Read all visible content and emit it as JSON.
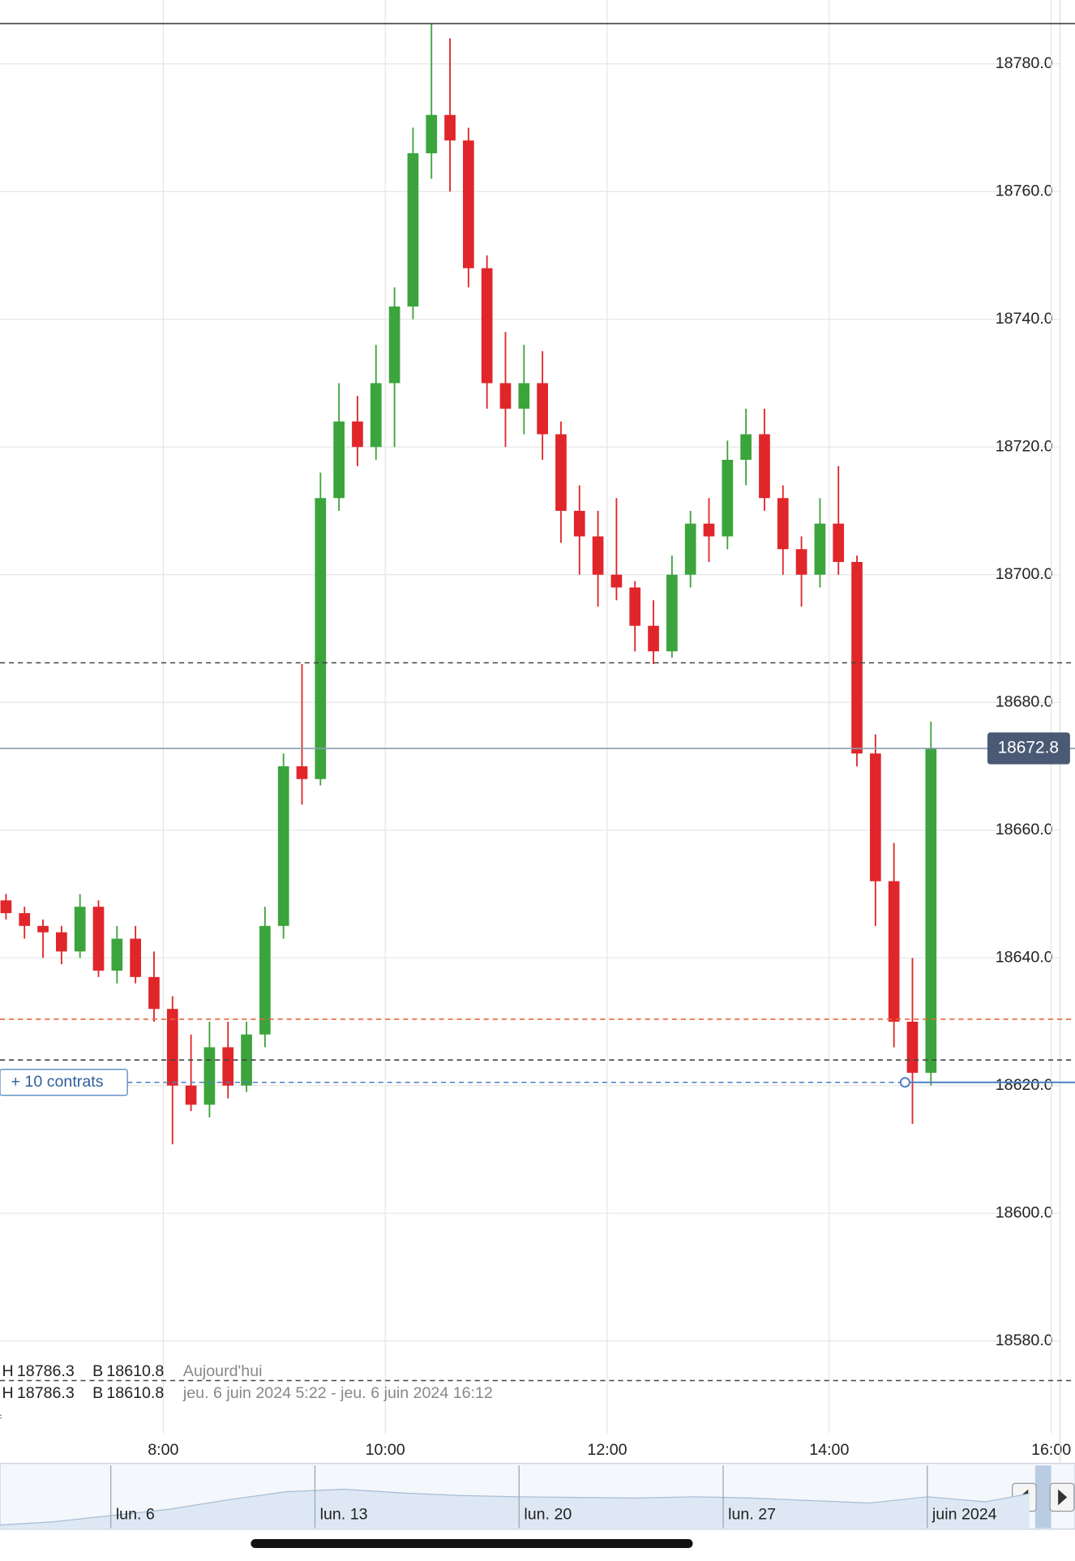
{
  "chart_data": [
    {
      "type": "candlestick",
      "x": [
        390,
        400,
        410,
        420,
        430,
        440,
        450,
        460,
        470,
        480,
        490,
        500,
        510,
        520,
        530,
        540,
        550,
        560,
        570,
        580,
        590,
        600,
        610,
        620,
        630,
        640,
        650,
        660,
        670,
        680,
        690,
        700,
        710,
        720,
        730,
        740,
        750,
        760,
        770,
        780,
        790,
        800,
        810,
        820,
        830,
        840,
        850,
        860,
        870,
        880,
        890
      ],
      "open": [
        18649,
        18647,
        18645,
        18644,
        18641,
        18648,
        18638,
        18643,
        18637,
        18632,
        18620,
        18617,
        18626,
        18620,
        18628,
        18645,
        18670,
        18668,
        18712,
        18724,
        18720,
        18730,
        18742,
        18766,
        18772,
        18768,
        18748,
        18730,
        18726,
        18730,
        18722,
        18710,
        18706,
        18700,
        18698,
        18692,
        18688,
        18700,
        18708,
        18706,
        18718,
        18722,
        18712,
        18704,
        18700,
        18708,
        18702,
        18672,
        18652,
        18630,
        18622
      ],
      "high": [
        18650,
        18648,
        18646,
        18645,
        18650,
        18649,
        18645,
        18645,
        18641,
        18634,
        18628,
        18630,
        18630,
        18630,
        18648,
        18672,
        18686,
        18716,
        18730,
        18728,
        18736,
        18745,
        18770,
        18786.3,
        18784,
        18770,
        18750,
        18738,
        18736,
        18735,
        18724,
        18714,
        18710,
        18712,
        18699,
        18696,
        18703,
        18710,
        18712,
        18721,
        18726,
        18726,
        18714,
        18706,
        18712,
        18717,
        18703,
        18675,
        18658,
        18640,
        18677
      ],
      "low": [
        18646,
        18643,
        18640,
        18639,
        18640,
        18637,
        18636,
        18636,
        18630,
        18610.8,
        18616,
        18615,
        18618,
        18619,
        18626,
        18643,
        18664,
        18667,
        18710,
        18717,
        18718,
        18720,
        18740,
        18762,
        18760,
        18745,
        18726,
        18720,
        18722,
        18718,
        18705,
        18700,
        18695,
        18696,
        18688,
        18686,
        18687,
        18698,
        18702,
        18704,
        18714,
        18710,
        18700,
        18695,
        18698,
        18700,
        18670,
        18645,
        18626,
        18614,
        18620
      ],
      "close": [
        18647,
        18645,
        18644,
        18641,
        18648,
        18638,
        18643,
        18637,
        18632,
        18620,
        18617,
        18626,
        18620,
        18628,
        18645,
        18670,
        18668,
        18712,
        18724,
        18720,
        18730,
        18742,
        18766,
        18772,
        18768,
        18748,
        18730,
        18726,
        18730,
        18722,
        18710,
        18706,
        18700,
        18698,
        18692,
        18688,
        18700,
        18708,
        18706,
        18718,
        18722,
        18712,
        18704,
        18700,
        18708,
        18702,
        18672,
        18652,
        18630,
        18622,
        18672.8
      ],
      "up_color": "#3ca43c",
      "down_color": "#e0262a",
      "xlim": [
        391.75,
        964.8
      ],
      "xticks": [
        {
          "value": 480,
          "label": "8:00"
        },
        {
          "value": 600,
          "label": "10:00"
        },
        {
          "value": 720,
          "label": "12:00"
        },
        {
          "value": 840,
          "label": "14:00"
        },
        {
          "value": 960,
          "label": "16:00"
        }
      ],
      "ylim": [
        18565.5,
        18790
      ],
      "yticks": [
        {
          "value": 18580,
          "label": "18580.0"
        },
        {
          "value": 18600,
          "label": "18600.0"
        },
        {
          "value": 18620,
          "label": "18620.0"
        },
        {
          "value": 18640,
          "label": "18640.0"
        },
        {
          "value": 18660,
          "label": "18660.0"
        },
        {
          "value": 18680,
          "label": "18680.0"
        },
        {
          "value": 18700,
          "label": "18700.0"
        },
        {
          "value": 18720,
          "label": "18720.0"
        },
        {
          "value": 18740,
          "label": "18740.0"
        },
        {
          "value": 18760,
          "label": "18760.0"
        },
        {
          "value": 18780,
          "label": "18780.0"
        }
      ],
      "grid": true,
      "lines": [
        {
          "value": 18786.3,
          "color": "#333333",
          "style": "solid"
        },
        {
          "value": 18686.2,
          "color": "#444444",
          "style": "dashed"
        },
        {
          "value": 18672.8,
          "color": "#8a9bb0",
          "style": "solid",
          "tag_color": "#4a5a75"
        },
        {
          "value": 18630.4,
          "color": "#e8643c",
          "style": "dashed"
        },
        {
          "value": 18624,
          "color": "#444444",
          "style": "dashed"
        },
        {
          "value": 18620.5,
          "color": "#4a7fc1",
          "style": "dashed",
          "label": "+ 10 contrats",
          "anchor_x": 881
        },
        {
          "value": 18573.8,
          "color": "#444444",
          "style": "dashed"
        }
      ],
      "stats": [
        {
          "high_label": "H",
          "high": 18786.3,
          "low_label": "B",
          "low": 18610.8,
          "period": "Aujourd'hui"
        },
        {
          "high_label": "H",
          "high": 18786.3,
          "low_label": "B",
          "low": 18610.8,
          "period": "jeu. 6 juin 2024 5:22 - jeu. 6 juin 2024 16:12"
        }
      ],
      "edge_text": "f"
    },
    {
      "type": "area",
      "x": [
        2.2,
        4,
        6,
        8,
        10,
        12,
        14,
        16,
        18,
        20,
        22,
        24,
        26,
        28,
        30,
        32,
        34,
        36,
        37.5
      ],
      "values": [
        5,
        10,
        20,
        30,
        45,
        58,
        62,
        56,
        52,
        50,
        49,
        48,
        50,
        48,
        44,
        40,
        50,
        42,
        55
      ],
      "color": "#4a7fc1",
      "xlim": [
        2.2,
        37.7
      ],
      "xticks": [
        {
          "value": 6,
          "label": "lun. 6"
        },
        {
          "value": 13,
          "label": "lun. 13"
        },
        {
          "value": 20,
          "label": "lun. 20"
        },
        {
          "value": 27,
          "label": "lun. 27"
        },
        {
          "value": 34,
          "label": "juin 2024"
        }
      ],
      "ylim": [
        0,
        100
      ]
    }
  ]
}
